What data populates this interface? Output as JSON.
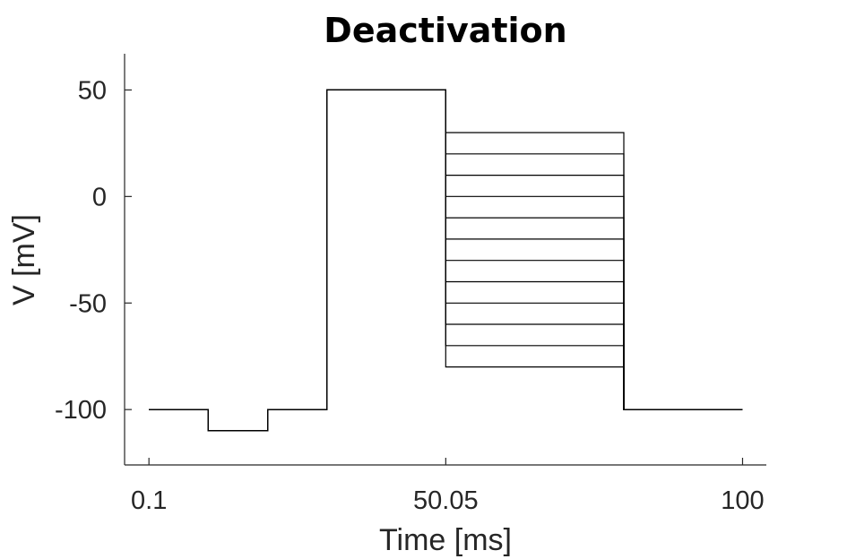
{
  "chart_data": {
    "type": "line",
    "title": "Deactivation",
    "xlabel": "Time [ms]",
    "ylabel": "V [mV]",
    "xlim": [
      -4,
      104
    ],
    "ylim": [
      -126,
      67
    ],
    "xticks": [
      0.1,
      50.05,
      100
    ],
    "xtick_labels": [
      "0.1",
      "50.05",
      "100"
    ],
    "yticks": [
      50,
      0,
      -50,
      -100
    ],
    "ytick_labels": [
      "50",
      "0",
      "-50",
      "-100"
    ],
    "grid": false,
    "legend": "none",
    "line_color": "#000000",
    "protocol": {
      "times": [
        0.1,
        10.09,
        20.08,
        30.07,
        50.05,
        80.02,
        100
      ],
      "holding_mv": -100,
      "prepulse_mv": -110,
      "activation_mv": 50,
      "test_mv": [
        30,
        20,
        10,
        0,
        -10,
        -20,
        -30,
        -40,
        -50,
        -60,
        -70,
        -80
      ]
    }
  }
}
